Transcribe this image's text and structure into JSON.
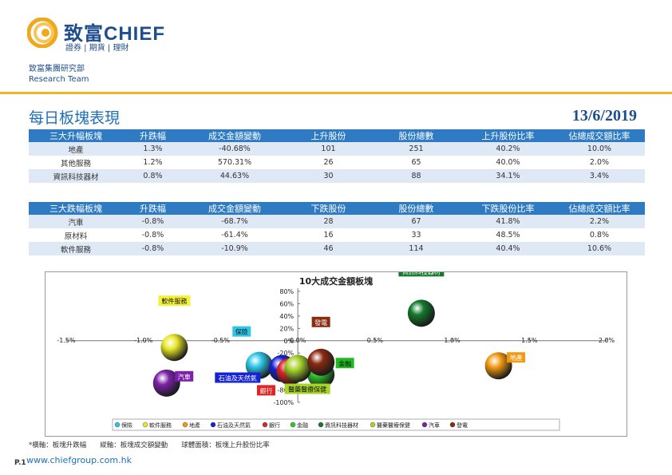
{
  "header": {
    "brand_cn": "致富",
    "brand_en": "CHIEF",
    "brand_sub": "證券 | 期貨 | 理財",
    "dept_cn": "致富集團研究部",
    "dept_en": "Research Team"
  },
  "page": {
    "title": "每日板塊表現",
    "date": "13/6/2019",
    "page_no": "P.1",
    "website": "www.chiefgroup.com.hk"
  },
  "up_table": {
    "headers": [
      "三大升幅板塊",
      "升跌幅",
      "成交金額變動",
      "上升股份",
      "股份總數",
      "上升股份比率",
      "佔總成交額比率"
    ],
    "rows": [
      [
        "地產",
        "1.3%",
        "-40.68%",
        "101",
        "251",
        "40.2%",
        "10.0%"
      ],
      [
        "其他服務",
        "1.2%",
        "570.31%",
        "26",
        "65",
        "40.0%",
        "2.0%"
      ],
      [
        "資訊科技器材",
        "0.8%",
        "44.63%",
        "30",
        "88",
        "34.1%",
        "3.4%"
      ]
    ]
  },
  "down_table": {
    "headers": [
      "三大跌幅板塊",
      "升跌幅",
      "成交金額變動",
      "下跌股份",
      "股份總數",
      "下跌股份比率",
      "佔總成交額比率"
    ],
    "rows": [
      [
        "汽車",
        "-0.8%",
        "-68.7%",
        "28",
        "67",
        "41.8%",
        "2.2%"
      ],
      [
        "原材料",
        "-0.8%",
        "-61.4%",
        "16",
        "33",
        "48.5%",
        "0.8%"
      ],
      [
        "軟件服務",
        "-0.8%",
        "-10.9%",
        "46",
        "114",
        "40.4%",
        "10.6%"
      ]
    ]
  },
  "chart_data": {
    "type": "scatter",
    "subtype": "bubble",
    "title": "10大成交金額板塊",
    "x_ticks": [
      "-1.5%",
      "-1.0%",
      "-0.5%",
      "0.0%",
      "0.5%",
      "1.0%",
      "1.5%",
      "2.0%"
    ],
    "y_ticks": [
      "-100%",
      "-80%",
      "-60%",
      "-40%",
      "-20%",
      "0%",
      "20%",
      "40%",
      "60%",
      "80%"
    ],
    "xlim": [
      -1.5,
      2.0
    ],
    "ylim": [
      -100,
      80
    ],
    "grid": false,
    "legend_position": "bottom",
    "series": [
      {
        "name": "保險",
        "x": -0.25,
        "y": -40,
        "color": "#2ec6e8",
        "label_color": "#2ec6e8"
      },
      {
        "name": "軟件服務",
        "x": -0.8,
        "y": -10.9,
        "color": "#e8e82a",
        "label_color": "#f2f23a"
      },
      {
        "name": "地產",
        "x": 1.3,
        "y": -40.68,
        "color": "#f29a12",
        "label_color": "#f29a12"
      },
      {
        "name": "石油及天然氣",
        "x": -0.1,
        "y": -45,
        "color": "#1622d6",
        "label_color": "#1622d6"
      },
      {
        "name": "銀行",
        "x": -0.05,
        "y": -50,
        "color": "#e02424",
        "label_color": "#e02424"
      },
      {
        "name": "金融",
        "x": 0.15,
        "y": -55,
        "color": "#2ec42e",
        "label_color": "#22b922"
      },
      {
        "name": "資訊科技器材",
        "x": 0.8,
        "y": 44.63,
        "color": "#137a2c",
        "label_color": "#137a2c"
      },
      {
        "name": "醫藥醫療保健",
        "x": 0.0,
        "y": -45,
        "color": "#a6d42a",
        "label_color": "#a6d42a"
      },
      {
        "name": "汽車",
        "x": -0.85,
        "y": -68.7,
        "color": "#7b22a8",
        "label_color": "#7b22a8"
      },
      {
        "name": "發電",
        "x": 0.15,
        "y": -35,
        "color": "#8a2a10",
        "label_color": "#8a2a10"
      }
    ]
  },
  "footnote": "*橫軸：板塊升跌幅　　縱軸：板塊成交額變動　　球體面積：板塊上升股份比率"
}
